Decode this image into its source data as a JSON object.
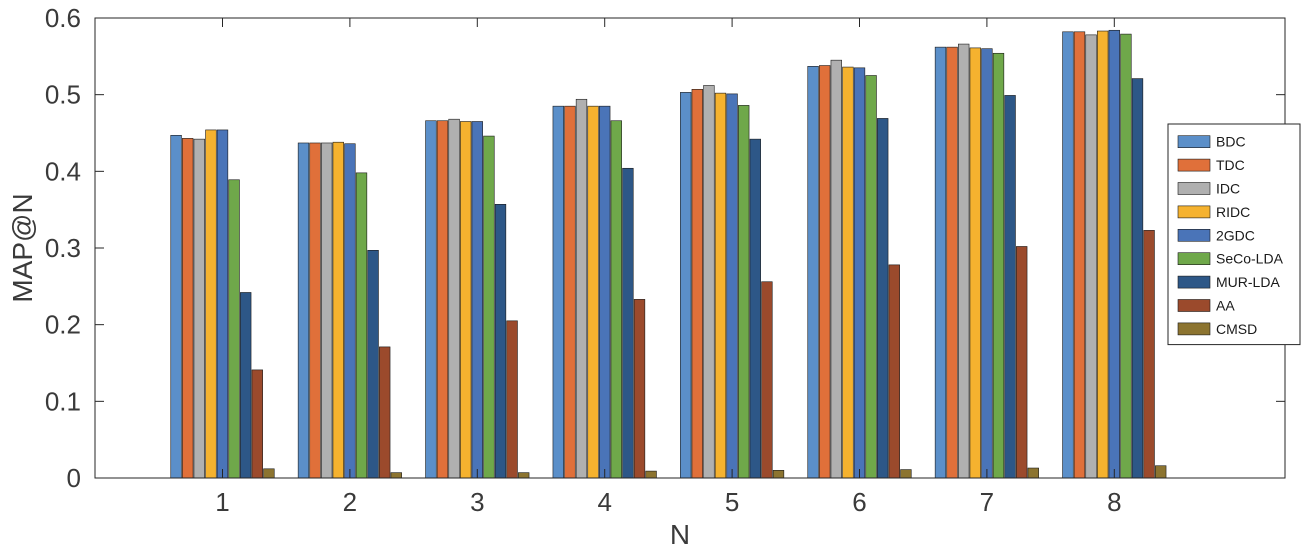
{
  "chart_data": {
    "type": "bar",
    "xlabel": "N",
    "ylabel": "MAP@N",
    "ylim": [
      0,
      0.6
    ],
    "yticks": [
      0,
      0.1,
      0.2,
      0.3,
      0.4,
      0.5,
      0.6
    ],
    "ytick_labels": [
      "0",
      "0.1",
      "0.2",
      "0.3",
      "0.4",
      "0.5",
      "0.6"
    ],
    "categories": [
      "1",
      "2",
      "3",
      "4",
      "5",
      "6",
      "7",
      "8"
    ],
    "grid": false,
    "legend_position": "right",
    "series": [
      {
        "name": "BDC",
        "color": "#5b8fc9",
        "values": [
          0.447,
          0.437,
          0.466,
          0.485,
          0.503,
          0.537,
          0.562,
          0.582
        ]
      },
      {
        "name": "TDC",
        "color": "#e0703a",
        "values": [
          0.443,
          0.437,
          0.466,
          0.485,
          0.507,
          0.538,
          0.562,
          0.582
        ]
      },
      {
        "name": "IDC",
        "color": "#b0b0b0",
        "values": [
          0.442,
          0.437,
          0.468,
          0.494,
          0.512,
          0.545,
          0.566,
          0.578
        ]
      },
      {
        "name": "RIDC",
        "color": "#f5b22f",
        "values": [
          0.454,
          0.438,
          0.465,
          0.485,
          0.502,
          0.536,
          0.561,
          0.583
        ]
      },
      {
        "name": "2GDC",
        "color": "#4a74b8",
        "values": [
          0.454,
          0.436,
          0.465,
          0.485,
          0.501,
          0.535,
          0.56,
          0.584
        ]
      },
      {
        "name": "SeCo-LDA",
        "color": "#6fa84a",
        "values": [
          0.389,
          0.398,
          0.446,
          0.466,
          0.486,
          0.525,
          0.554,
          0.579
        ]
      },
      {
        "name": "MUR-LDA",
        "color": "#2d5787",
        "values": [
          0.242,
          0.297,
          0.357,
          0.404,
          0.442,
          0.469,
          0.499,
          0.521
        ]
      },
      {
        "name": "AA",
        "color": "#9b4a2c",
        "values": [
          0.141,
          0.171,
          0.205,
          0.233,
          0.256,
          0.278,
          0.302,
          0.323
        ]
      },
      {
        "name": "CMSD",
        "color": "#8c7430",
        "values": [
          0.012,
          0.007,
          0.007,
          0.009,
          0.01,
          0.011,
          0.013,
          0.016
        ]
      }
    ]
  }
}
